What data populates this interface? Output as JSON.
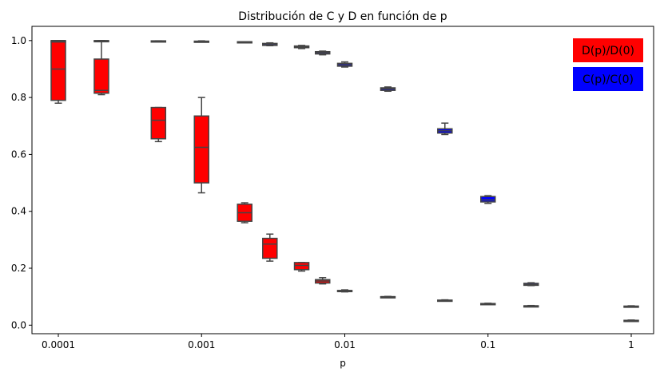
{
  "chart_data": {
    "type": "box",
    "title": "Distribución de C y D en función de p",
    "xlabel": "p",
    "ylabel": "",
    "x_scale": "log",
    "xlim": [
      0.0001,
      1
    ],
    "ylim": [
      -0.03,
      1.05
    ],
    "x_ticks": [
      {
        "value": 0.0001,
        "label": "0.0001"
      },
      {
        "value": 0.001,
        "label": "0.001"
      },
      {
        "value": 0.01,
        "label": "0.01"
      },
      {
        "value": 0.1,
        "label": "0.1"
      },
      {
        "value": 1,
        "label": "1"
      }
    ],
    "y_ticks": [
      {
        "value": 0.0,
        "label": "0.0"
      },
      {
        "value": 0.2,
        "label": "0.2"
      },
      {
        "value": 0.4,
        "label": "0.4"
      },
      {
        "value": 0.6,
        "label": "0.6"
      },
      {
        "value": 0.8,
        "label": "0.8"
      },
      {
        "value": 1.0,
        "label": "1.0"
      }
    ],
    "legend_position": "top-right",
    "grid": false,
    "series": [
      {
        "name": "D(p)/D(0)",
        "color": "#ff0000",
        "boxes": [
          {
            "p": 0.0001,
            "min": 0.78,
            "q1": 0.79,
            "median": 0.9,
            "q3": 0.995,
            "max": 1.0
          },
          {
            "p": 0.0002,
            "min": 0.81,
            "q1": 0.815,
            "median": 0.825,
            "q3": 0.935,
            "max": 1.0
          },
          {
            "p": 0.0005,
            "min": 0.645,
            "q1": 0.655,
            "median": 0.72,
            "q3": 0.765,
            "max": 0.765
          },
          {
            "p": 0.001,
            "min": 0.465,
            "q1": 0.5,
            "median": 0.625,
            "q3": 0.735,
            "max": 0.8
          },
          {
            "p": 0.002,
            "min": 0.36,
            "q1": 0.365,
            "median": 0.395,
            "q3": 0.425,
            "max": 0.43
          },
          {
            "p": 0.003,
            "min": 0.225,
            "q1": 0.235,
            "median": 0.285,
            "q3": 0.305,
            "max": 0.32
          },
          {
            "p": 0.005,
            "min": 0.19,
            "q1": 0.195,
            "median": 0.21,
            "q3": 0.22,
            "max": 0.22
          },
          {
            "p": 0.007,
            "min": 0.145,
            "q1": 0.148,
            "median": 0.155,
            "q3": 0.16,
            "max": 0.167
          },
          {
            "p": 0.01,
            "min": 0.117,
            "q1": 0.119,
            "median": 0.12,
            "q3": 0.122,
            "max": 0.124
          },
          {
            "p": 0.02,
            "min": 0.098,
            "q1": 0.099,
            "median": 0.1,
            "q3": 0.1,
            "max": 0.101
          },
          {
            "p": 0.05,
            "min": 0.085,
            "q1": 0.086,
            "median": 0.087,
            "q3": 0.088,
            "max": 0.089
          },
          {
            "p": 0.1,
            "min": 0.073,
            "q1": 0.074,
            "median": 0.075,
            "q3": 0.076,
            "max": 0.077
          },
          {
            "p": 0.2,
            "min": 0.067,
            "q1": 0.067,
            "median": 0.068,
            "q3": 0.068,
            "max": 0.069
          },
          {
            "p": 1,
            "min": 0.014,
            "q1": 0.015,
            "median": 0.016,
            "q3": 0.017,
            "max": 0.018
          }
        ]
      },
      {
        "name": "C(p)/C(0)",
        "color": "#0000ff",
        "boxes": [
          {
            "p": 0.0001,
            "min": 0.999,
            "q1": 0.999,
            "median": 1.0,
            "q3": 1.0,
            "max": 1.0
          },
          {
            "p": 0.0002,
            "min": 0.998,
            "q1": 0.998,
            "median": 0.999,
            "q3": 1.0,
            "max": 1.0
          },
          {
            "p": 0.0005,
            "min": 0.997,
            "q1": 0.998,
            "median": 0.998,
            "q3": 0.999,
            "max": 0.999
          },
          {
            "p": 0.001,
            "min": 0.995,
            "q1": 0.996,
            "median": 0.997,
            "q3": 0.998,
            "max": 0.999
          },
          {
            "p": 0.002,
            "min": 0.992,
            "q1": 0.993,
            "median": 0.994,
            "q3": 0.996,
            "max": 0.996
          },
          {
            "p": 0.003,
            "min": 0.982,
            "q1": 0.983,
            "median": 0.986,
            "q3": 0.99,
            "max": 0.992
          },
          {
            "p": 0.005,
            "min": 0.972,
            "q1": 0.975,
            "median": 0.978,
            "q3": 0.981,
            "max": 0.983
          },
          {
            "p": 0.007,
            "min": 0.95,
            "q1": 0.953,
            "median": 0.957,
            "q3": 0.961,
            "max": 0.963
          },
          {
            "p": 0.01,
            "min": 0.907,
            "q1": 0.91,
            "median": 0.915,
            "q3": 0.92,
            "max": 0.925
          },
          {
            "p": 0.02,
            "min": 0.822,
            "q1": 0.825,
            "median": 0.83,
            "q3": 0.834,
            "max": 0.837
          },
          {
            "p": 0.05,
            "min": 0.67,
            "q1": 0.675,
            "median": 0.683,
            "q3": 0.69,
            "max": 0.71
          },
          {
            "p": 0.1,
            "min": 0.428,
            "q1": 0.433,
            "median": 0.44,
            "q3": 0.452,
            "max": 0.455
          },
          {
            "p": 0.2,
            "min": 0.139,
            "q1": 0.14,
            "median": 0.143,
            "q3": 0.147,
            "max": 0.149
          },
          {
            "p": 1,
            "min": 0.064,
            "q1": 0.065,
            "median": 0.066,
            "q3": 0.067,
            "max": 0.068
          }
        ]
      }
    ]
  }
}
